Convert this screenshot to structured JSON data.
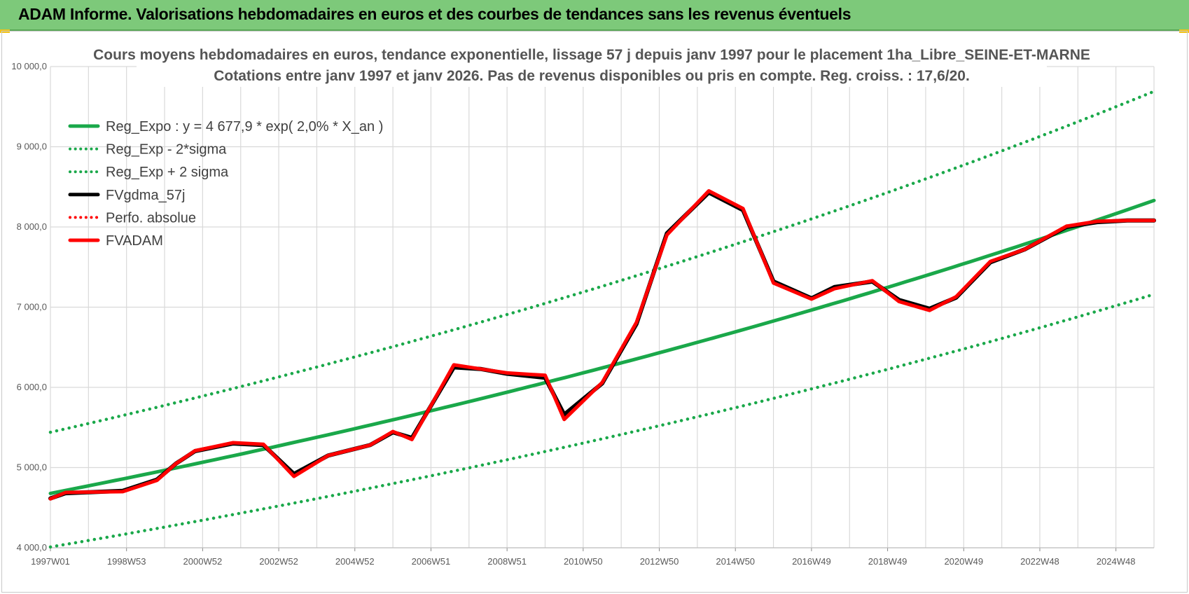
{
  "header": {
    "title": "ADAM Informe. Valorisations hebdomadaires en euros et des courbes de tendances sans les revenus éventuels"
  },
  "colors": {
    "header_bg": "#7dc97a",
    "reg_green": "#1aa84a",
    "dotted_green": "#1aa84a",
    "black": "#000000",
    "red": "#ff0000",
    "grid": "#d9d9d9"
  },
  "chart_data": {
    "type": "line",
    "title": "Cours moyens hebdomadaires en euros, tendance exponentielle, lissage 57 j depuis janv 1997 pour le placement 1ha_Libre_SEINE-ET-MARNE",
    "subtitle": "Cotations entre janv 1997 et janv 2026. Pas de revenus disponibles ou pris en compte. Reg. croiss. : 17,6/20.",
    "ylim": [
      4000,
      10000
    ],
    "y_ticks": [
      "4 000,0",
      "5 000,0",
      "6 000,0",
      "7 000,0",
      "8 000,0",
      "9 000,0",
      "10 000,0"
    ],
    "x_ticks": [
      "1997W01",
      "1998W53",
      "2000W52",
      "2002W52",
      "2004W52",
      "2006W51",
      "2008W51",
      "2010W50",
      "2012W50",
      "2014W50",
      "2016W49",
      "2018W49",
      "2020W49",
      "2022W48",
      "2024W48"
    ],
    "xlim_years": [
      1997.0,
      2026.0
    ],
    "grid": true,
    "legend_position": "top-left",
    "series": [
      {
        "name": "Reg_Expo : y = 4 677,9 * exp( 2,0% *  X_an )",
        "style": "solid",
        "color": "#1aa84a",
        "x": [
          1997.0,
          2026.0
        ],
        "y": [
          4678,
          8330
        ],
        "curve": "exponential"
      },
      {
        "name": "Reg_Exp - 2*sigma",
        "style": "dotted",
        "color": "#1aa84a",
        "x": [
          1997.0,
          2026.0
        ],
        "y": [
          4010,
          7160
        ],
        "curve": "exponential"
      },
      {
        "name": "Reg_Exp + 2 sigma",
        "style": "dotted",
        "color": "#1aa84a",
        "x": [
          1997.0,
          2026.0
        ],
        "y": [
          5440,
          9690
        ],
        "curve": "exponential"
      },
      {
        "name": "FVgdma_57j",
        "style": "solid",
        "color": "#000000",
        "x": [
          1997.0,
          1997.4,
          1998.9,
          1999.8,
          2000.3,
          2000.8,
          2001.8,
          2002.6,
          2003.4,
          2004.3,
          2005.4,
          2006.0,
          2006.5,
          2007.6,
          2008.3,
          2009.0,
          2010.0,
          2010.5,
          2011.5,
          2012.4,
          2013.2,
          2014.3,
          2015.2,
          2016.0,
          2017.0,
          2017.6,
          2018.6,
          2019.3,
          2020.1,
          2020.8,
          2021.7,
          2022.6,
          2023.7,
          2024.5,
          2025.3,
          2026.0
        ],
        "y": [
          4615,
          4680,
          4710,
          4850,
          5050,
          5205,
          5300,
          5280,
          4920,
          5150,
          5280,
          5440,
          5370,
          6250,
          6230,
          6170,
          6120,
          5660,
          6050,
          6790,
          7920,
          8430,
          8210,
          7320,
          7110,
          7250,
          7320,
          7090,
          6980,
          7120,
          7560,
          7720,
          8000,
          8060,
          8080,
          8080
        ]
      },
      {
        "name": "Perfo. absolue",
        "style": "dotted",
        "color": "#ff0000",
        "x": [],
        "y": []
      },
      {
        "name": "FVADAM",
        "style": "solid",
        "color": "#ff0000",
        "x": [
          1997.0,
          1997.4,
          1998.9,
          1999.8,
          2000.3,
          2000.8,
          2001.8,
          2002.6,
          2003.4,
          2004.3,
          2005.4,
          2006.0,
          2006.5,
          2007.6,
          2008.3,
          2009.0,
          2010.0,
          2010.5,
          2011.5,
          2012.4,
          2013.2,
          2014.3,
          2015.2,
          2016.0,
          2017.0,
          2017.6,
          2018.6,
          2019.3,
          2020.1,
          2020.8,
          2021.7,
          2022.6,
          2023.7,
          2024.5,
          2025.3,
          2026.0
        ],
        "y": [
          4610,
          4690,
          4700,
          4840,
          5050,
          5210,
          5310,
          5290,
          4890,
          5150,
          5280,
          5450,
          5350,
          6280,
          6230,
          6180,
          6150,
          5600,
          6060,
          6810,
          7900,
          8450,
          8230,
          7300,
          7100,
          7230,
          7330,
          7070,
          6960,
          7130,
          7570,
          7720,
          8010,
          8070,
          8080,
          8080
        ]
      }
    ]
  }
}
